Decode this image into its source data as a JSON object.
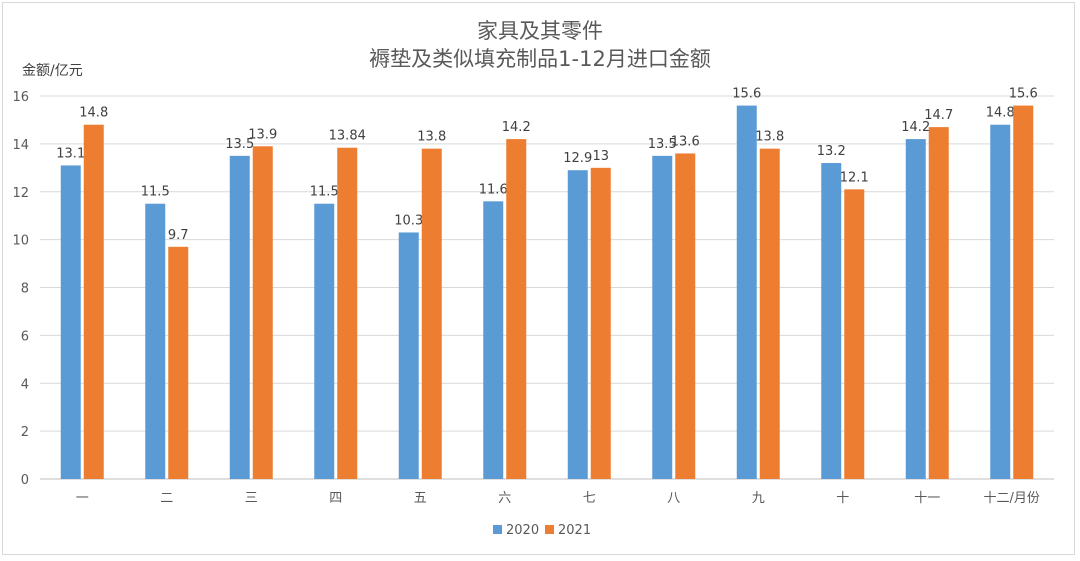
{
  "chart_data": {
    "type": "bar",
    "title": "家具及其零件",
    "subtitle": "褥垫及类似填充制品1-12月进口金额",
    "ylabel": "金额/亿元",
    "categories": [
      "一",
      "二",
      "三",
      "四",
      "五",
      "六",
      "七",
      "八",
      "九",
      "十",
      "十一",
      "十二/月份"
    ],
    "series": [
      {
        "name": "2020",
        "color": "#5b9bd5",
        "values": [
          13.1,
          11.5,
          13.5,
          11.5,
          10.3,
          11.6,
          12.9,
          13.5,
          15.6,
          13.2,
          14.2,
          14.8
        ],
        "labels": [
          "13.1",
          "11.5",
          "13.5",
          "11.5",
          "10.3",
          "11.6",
          "12.9",
          "13.5",
          "15.6",
          "13.2",
          "14.2",
          "14.8"
        ]
      },
      {
        "name": "2021",
        "color": "#ed7d31",
        "values": [
          14.8,
          9.7,
          13.9,
          13.84,
          13.8,
          14.2,
          13,
          13.6,
          13.8,
          12.1,
          14.7,
          15.6
        ],
        "labels": [
          "14.8",
          "9.7",
          "13.9",
          "13.84",
          "13.8",
          "14.2",
          "13",
          "13.6",
          "13.8",
          "12.1",
          "14.7",
          "15.6"
        ]
      }
    ],
    "ylim": [
      0,
      16
    ],
    "yticks": [
      0,
      2,
      4,
      6,
      8,
      10,
      12,
      14,
      16
    ],
    "grid": true,
    "legend": "bottom"
  }
}
